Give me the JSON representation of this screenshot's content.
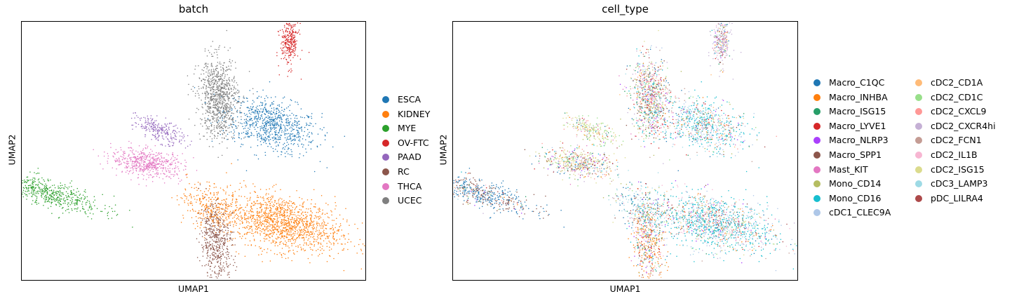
{
  "chart_data": [
    {
      "type": "scatter",
      "title": "batch",
      "xlabel": "UMAP1",
      "ylabel": "UMAP2",
      "legend_placement": "right",
      "legend_columns": 1,
      "series": [
        {
          "name": "ESCA",
          "color": "#1f77b4",
          "clusters": [
            [
              7.0,
              6.2,
              1.8,
              0.85,
              -0.25,
              800
            ]
          ]
        },
        {
          "name": "KIDNEY",
          "color": "#ff7f0e",
          "clusters": [
            [
              7.5,
              2.6,
              2.3,
              0.9,
              -0.18,
              1400
            ],
            [
              4.5,
              3.2,
              1.2,
              0.7,
              -0.3,
              300
            ]
          ]
        },
        {
          "name": "MYE",
          "color": "#2ca02c",
          "clusters": [
            [
              -2.5,
              3.7,
              2.2,
              0.45,
              -0.22,
              600
            ]
          ]
        },
        {
          "name": "OV-FTC",
          "color": "#d62728",
          "clusters": [
            [
              7.8,
              9.3,
              0.35,
              0.85,
              0.0,
              300
            ]
          ]
        },
        {
          "name": "PAAD",
          "color": "#9467bd",
          "clusters": [
            [
              2.3,
              6.0,
              1.0,
              0.35,
              -0.35,
              250
            ]
          ]
        },
        {
          "name": "RC",
          "color": "#8c564b",
          "clusters": [
            [
              4.7,
              1.9,
              0.6,
              1.3,
              0.12,
              500
            ]
          ]
        },
        {
          "name": "THCA",
          "color": "#e377c2",
          "clusters": [
            [
              1.8,
              4.8,
              1.4,
              0.45,
              -0.12,
              550
            ]
          ]
        },
        {
          "name": "UCEC",
          "color": "#7f7f7f",
          "clusters": [
            [
              4.8,
              7.2,
              0.75,
              1.35,
              0.06,
              900
            ]
          ]
        }
      ]
    },
    {
      "type": "scatter",
      "title": "cell_type",
      "xlabel": "UMAP1",
      "ylabel": "UMAP2",
      "legend_placement": "right",
      "legend_columns": 2,
      "series": [
        {
          "name": "Macro_C1QC",
          "color": "#1f77b4"
        },
        {
          "name": "Macro_INHBA",
          "color": "#ff7f0e"
        },
        {
          "name": "Macro_ISG15",
          "color": "#279e68"
        },
        {
          "name": "Macro_LYVE1",
          "color": "#d62728"
        },
        {
          "name": "Macro_NLRP3",
          "color": "#aa40fc"
        },
        {
          "name": "Macro_SPP1",
          "color": "#8c564b"
        },
        {
          "name": "Mast_KIT",
          "color": "#e377c2"
        },
        {
          "name": "Mono_CD14",
          "color": "#b5bd61"
        },
        {
          "name": "Mono_CD16",
          "color": "#17becf"
        },
        {
          "name": "cDC1_CLEC9A",
          "color": "#aec7e8"
        },
        {
          "name": "cDC2_CD1A",
          "color": "#ffbb78"
        },
        {
          "name": "cDC2_CD1C",
          "color": "#98df8a"
        },
        {
          "name": "cDC2_CXCL9",
          "color": "#ff9896"
        },
        {
          "name": "cDC2_CXCR4hi",
          "color": "#c5b0d5"
        },
        {
          "name": "cDC2_FCN1",
          "color": "#c49c94"
        },
        {
          "name": "cDC2_IL1B",
          "color": "#f7b6d2"
        },
        {
          "name": "cDC2_ISG15",
          "color": "#dbdb8d"
        },
        {
          "name": "cDC3_LAMP3",
          "color": "#9edae5"
        },
        {
          "name": "pDC_LILRA4",
          "color": "#ad494a"
        }
      ]
    }
  ]
}
